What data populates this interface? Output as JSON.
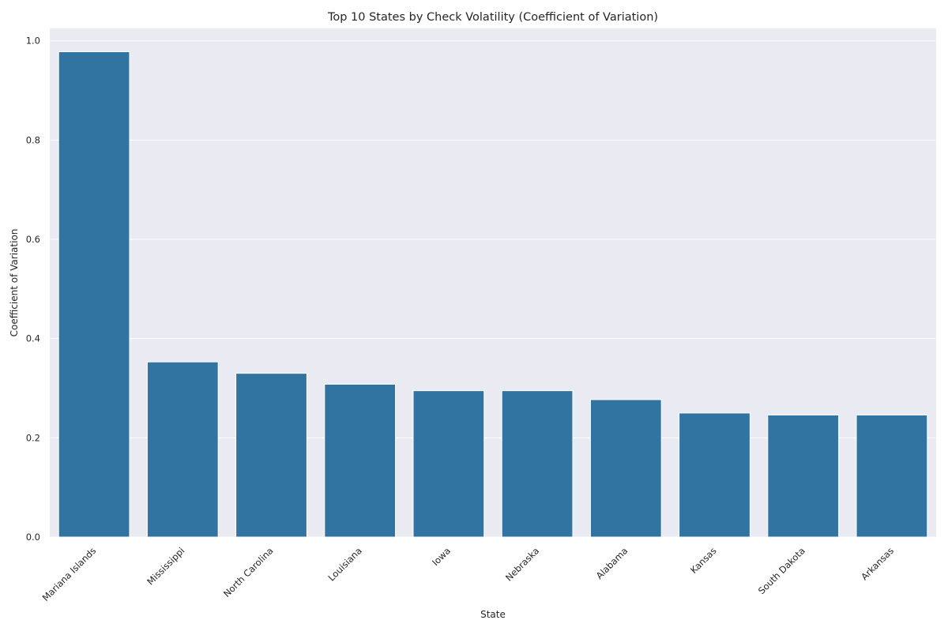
{
  "chart_data": {
    "type": "bar",
    "title": "Top 10 States by Check Volatility (Coefficient of Variation)",
    "xlabel": "State",
    "ylabel": "Coefficient of Variation",
    "categories": [
      "Mariana Islands",
      "Mississippi",
      "North Carolina",
      "Louisiana",
      "Iowa",
      "Nebraska",
      "Alabama",
      "Kansas",
      "South Dakota",
      "Arkansas"
    ],
    "values": [
      0.978,
      0.353,
      0.33,
      0.308,
      0.295,
      0.295,
      0.277,
      0.25,
      0.246,
      0.246
    ],
    "ylim": [
      0,
      1.025
    ],
    "yticks": [
      0.0,
      0.2,
      0.4,
      0.6,
      0.8,
      1.0
    ],
    "ytick_labels": [
      "0.0",
      "0.2",
      "0.4",
      "0.6",
      "0.8",
      "1.0"
    ],
    "grid": true,
    "colors": {
      "bar": "#3274a1",
      "plot_background": "#eaeaf2",
      "grid": "#ffffff",
      "text": "#262626"
    }
  }
}
